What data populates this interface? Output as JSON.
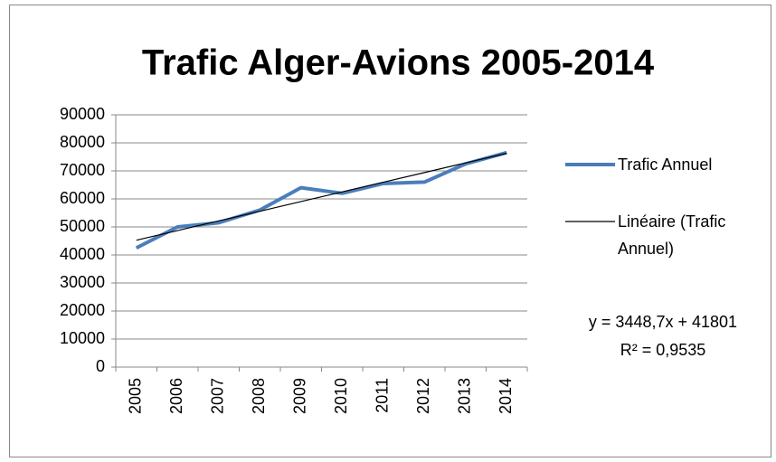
{
  "chart_data": {
    "type": "line",
    "title": "Trafic Alger-Avions 2005-2014",
    "categories": [
      "2005",
      "2006",
      "2007",
      "2008",
      "2009",
      "2010",
      "2011",
      "2012",
      "2013",
      "2014"
    ],
    "series": [
      {
        "name": "Trafic Annuel",
        "color": "#4a7ebb",
        "values": [
          42500,
          50000,
          51500,
          56000,
          64000,
          62000,
          65500,
          66000,
          72500,
          76500
        ]
      },
      {
        "name": "Linéaire (Trafic Annuel)",
        "color": "#000000",
        "values": [
          45250,
          48699,
          52147,
          55596,
          59045,
          62493,
          65942,
          69391,
          72839,
          76288
        ]
      }
    ],
    "annotations": [
      "y = 3448,7x + 41801",
      "R² = 0,9535"
    ],
    "ylim": [
      0,
      90000
    ],
    "yticks": [
      0,
      10000,
      20000,
      30000,
      40000,
      50000,
      60000,
      70000,
      80000,
      90000
    ],
    "grid": true,
    "legend": "right"
  }
}
